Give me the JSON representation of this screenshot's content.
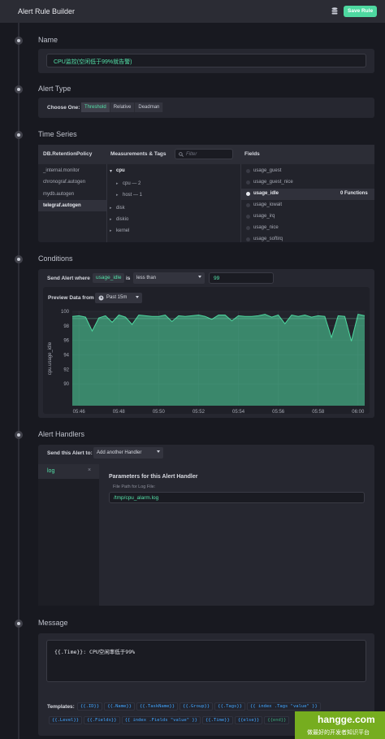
{
  "header": {
    "title": "Alert Rule Builder",
    "db_icon": "database-icon",
    "save_label": "Save Rule"
  },
  "name_section": {
    "title": "Name",
    "value": "CPU监控(空闲低于99%就告警)"
  },
  "alert_type": {
    "title": "Alert Type",
    "choose_label": "Choose One:",
    "options": [
      "Threshold",
      "Relative",
      "Deadman"
    ],
    "selected": "Threshold"
  },
  "time_series": {
    "title": "Time Series",
    "db_header": "DB.RetentionPolicy",
    "databases": [
      "_internal.monitor",
      "chronograf.autogen",
      "mydb.autogen",
      "telegraf.autogen"
    ],
    "selected_db": "telegraf.autogen",
    "measurements_header": "Measurements & Tags",
    "filter_placeholder": "Filter",
    "measurements": [
      "cpu",
      "cpu — 2",
      "host — 1",
      "disk",
      "diskio",
      "kernel"
    ],
    "fields_header": "Fields",
    "fields": [
      "usage_guest",
      "usage_guest_nice",
      "usage_idle",
      "usage_iowait",
      "usage_irq",
      "usage_nice",
      "usage_softirq"
    ],
    "selected_field": "usage_idle",
    "functions_label": "0 Functions"
  },
  "conditions": {
    "title": "Conditions",
    "send_alert_label": "Send Alert where",
    "field": "usage_idle",
    "is_label": "is",
    "operator": "less than",
    "value": "99",
    "preview_label": "Preview Data from",
    "range": "Past 15m"
  },
  "chart_data": {
    "type": "area",
    "ylabel": "cpu.usage_idle",
    "ylim": [
      87,
      100
    ],
    "yticks": [
      90,
      92,
      94,
      96,
      98,
      100
    ],
    "xlim": [
      "05:45:40",
      "06:00:20"
    ],
    "xticks": [
      "05:46",
      "05:48",
      "05:50",
      "05:52",
      "05:54",
      "05:56",
      "05:58",
      "06:00"
    ],
    "x": [
      "05:45:40",
      "05:46:00",
      "05:46:20",
      "05:46:40",
      "05:47:00",
      "05:47:20",
      "05:47:40",
      "05:48:00",
      "05:48:20",
      "05:48:40",
      "05:49:00",
      "05:49:20",
      "05:49:40",
      "05:50:00",
      "05:50:20",
      "05:50:40",
      "05:51:00",
      "05:51:20",
      "05:51:40",
      "05:52:00",
      "05:52:20",
      "05:52:40",
      "05:53:00",
      "05:53:20",
      "05:53:40",
      "05:54:00",
      "05:54:20",
      "05:54:40",
      "05:55:00",
      "05:55:20",
      "05:55:40",
      "05:56:00",
      "05:56:20",
      "05:56:40",
      "05:57:00",
      "05:57:20",
      "05:57:40",
      "05:58:00",
      "05:58:20",
      "05:58:40",
      "05:59:00",
      "05:59:20",
      "05:59:40",
      "06:00:00",
      "06:00:20"
    ],
    "series": [
      {
        "values": [
          99.3,
          99.4,
          99.2,
          97.3,
          99.1,
          99.4,
          98.5,
          99.5,
          99.2,
          98.2,
          99.5,
          99.4,
          99.3,
          99.3,
          99.5,
          98.6,
          99.4,
          99.3,
          99.4,
          99.5,
          99.3,
          98.9,
          99.5,
          99.5,
          98.7,
          99.4,
          99.3,
          99.3,
          99.4,
          99.6,
          99.2,
          99.5,
          98.3,
          99.5,
          99.3,
          99.5,
          99.2,
          99.4,
          99.3,
          96.4,
          99.4,
          99.3,
          95.9,
          99.6,
          99.4
        ],
        "color": "#4ed8a0"
      }
    ],
    "threshold": 99
  },
  "handlers": {
    "title": "Alert Handlers",
    "send_to_label": "Send this Alert to:",
    "add_label": "Add another Handler",
    "items": [
      "log"
    ],
    "params_title": "Parameters for this Alert Handler",
    "file_path_label": "File Path for Log File:",
    "file_path": "/tmp/cpu_alarm.log"
  },
  "message": {
    "title": "Message",
    "text": "{{.Time}}: CPU空闲率低于99%",
    "templates_label": "Templates:",
    "templates": [
      "{{.ID}}",
      "{{.Name}}",
      "{{.TaskName}}",
      "{{.Group}}",
      "{{.Tags}}",
      "{{ index .Tags \"value\" }}",
      "{{.Level}}",
      "{{.Fields}}",
      "{{ index .Fields \"value\" }}",
      "{{.Time}}",
      "{{else}}",
      "{{end}}"
    ]
  },
  "watermark": {
    "line1": "hangge.com",
    "line2": "做最好的开发者知识平台"
  }
}
